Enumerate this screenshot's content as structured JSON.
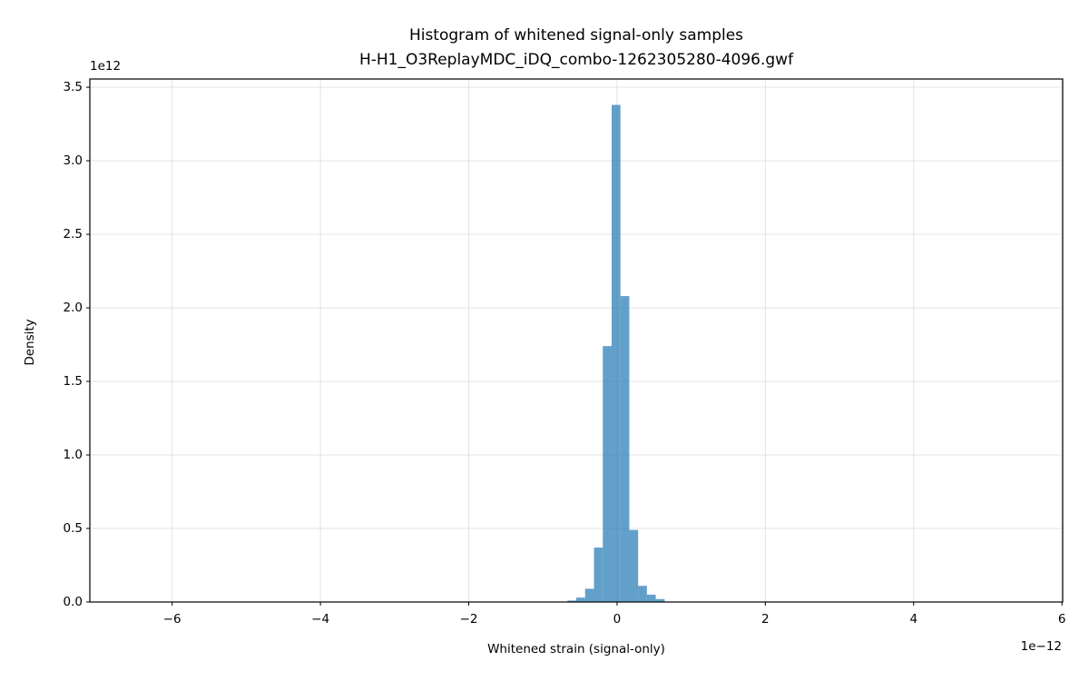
{
  "chart_data": {
    "type": "histogram",
    "title": "Histogram of whitened signal-only samples",
    "subtitle": "H-H1_O3ReplayMDC_iDQ_combo-1262305280-4096.gwf",
    "x_label": "Whitened strain (signal-only)",
    "y_label": "Density",
    "x_offset_label": "1e−12",
    "y_offset_label": "1e12",
    "bins": [
      -0.669,
      -0.55,
      -0.431,
      -0.311,
      -0.192,
      -0.073,
      0.046,
      0.165,
      0.284,
      0.403,
      0.522,
      0.642
    ],
    "counts": [
      0.01,
      0.03,
      0.09,
      0.37,
      1.74,
      3.38,
      2.08,
      0.49,
      0.11,
      0.05,
      0.02
    ],
    "color": "#1f77b4",
    "alpha": 0.7,
    "xlim": [
      -7.11,
      6.01
    ],
    "xticks": [
      {
        "value": -6,
        "label": "−6"
      },
      {
        "value": -4,
        "label": "−4"
      },
      {
        "value": -2,
        "label": "−2"
      },
      0,
      2,
      4,
      6
    ],
    "ylim": [
      0,
      3.556
    ],
    "yticks": [
      {
        "value": 0,
        "label": "0.0"
      },
      {
        "value": 0.5,
        "label": "0.5"
      },
      {
        "value": 1,
        "label": "1.0"
      },
      {
        "value": 1.5,
        "label": "1.5"
      },
      {
        "value": 2,
        "label": "2.0"
      },
      {
        "value": 2.5,
        "label": "2.5"
      },
      {
        "value": 3,
        "label": "3.0"
      },
      {
        "value": 3.5,
        "label": "3.5"
      }
    ],
    "grid": true
  }
}
